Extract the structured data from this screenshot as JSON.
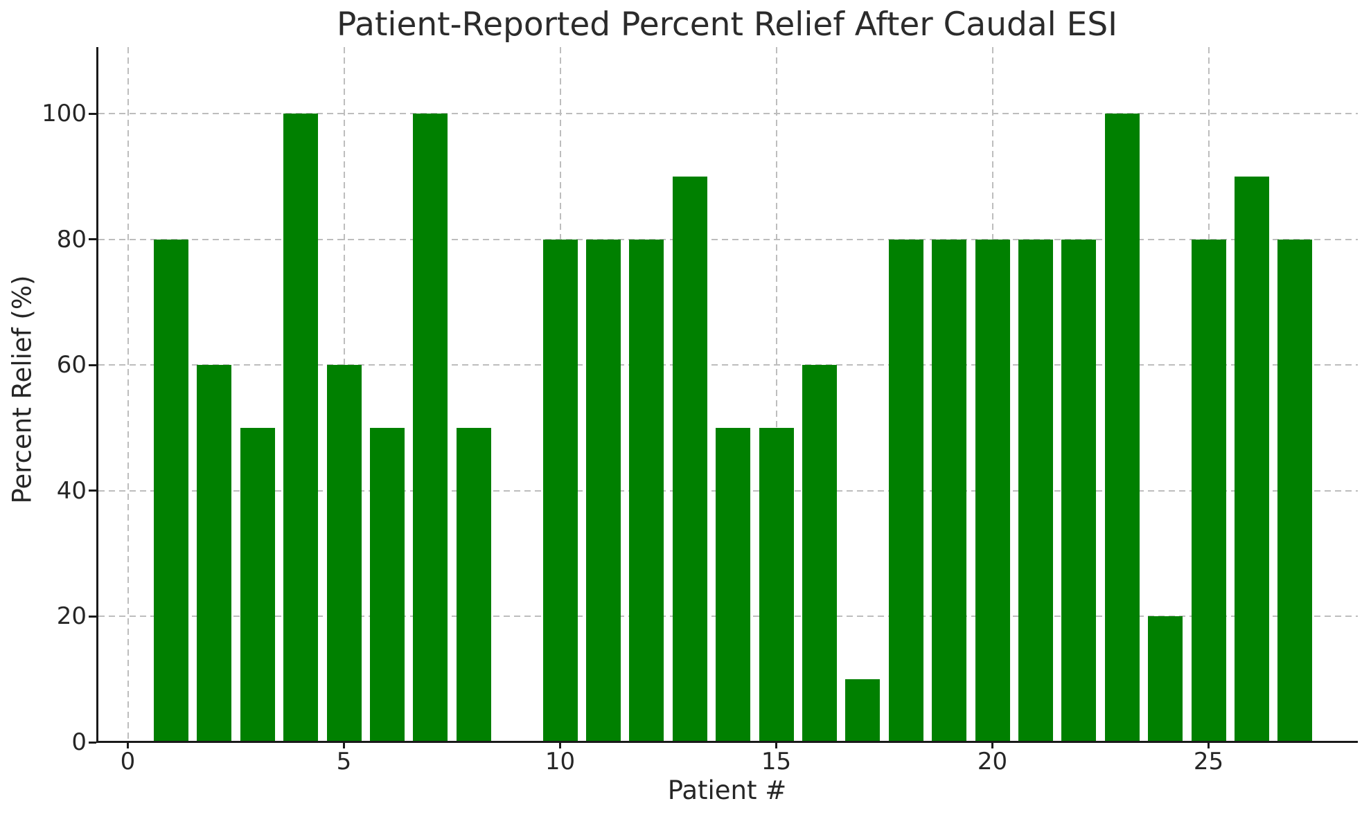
{
  "figure": {
    "background": "#ffffff"
  },
  "chart_data": {
    "type": "bar",
    "title": "Patient-Reported Percent Relief After Caudal ESI",
    "xlabel": "Patient #",
    "ylabel": "Percent Relief (%)",
    "categories": [
      1,
      2,
      3,
      4,
      5,
      6,
      7,
      8,
      9,
      10,
      11,
      12,
      13,
      14,
      15,
      16,
      17,
      18,
      19,
      20,
      21,
      22,
      23,
      24,
      25,
      26,
      27
    ],
    "values": [
      80,
      60,
      50,
      100,
      60,
      50,
      100,
      50,
      0,
      80,
      80,
      80,
      90,
      50,
      50,
      60,
      10,
      80,
      80,
      80,
      80,
      80,
      100,
      20,
      80,
      90,
      80
    ],
    "xticks": [
      0,
      5,
      10,
      15,
      20,
      25
    ],
    "yticks": [
      0,
      20,
      40,
      60,
      80,
      100
    ],
    "xlim": [
      -0.73,
      28.45
    ],
    "ylim": [
      0,
      110.6
    ],
    "grid": "dashed",
    "legend": "none",
    "bar_color": "#008000",
    "grid_color": "#bdbdbd",
    "spine_color": "#1a1a1a",
    "text_color": "#262626"
  }
}
